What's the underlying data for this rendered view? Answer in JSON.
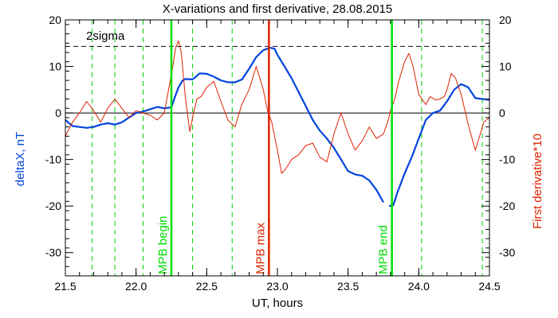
{
  "chart_data": {
    "type": "line",
    "title": "X-variations and first derivative, 28.08.2015",
    "xlabel": "UT, hours",
    "ylabel_left": "deltaX, nT",
    "ylabel_right": "First derivative*10",
    "xlim": [
      21.5,
      24.5
    ],
    "ylim": [
      -35,
      20
    ],
    "x_ticks": [
      "21.5",
      "22.0",
      "22.5",
      "23.0",
      "23.5",
      "24.0",
      "24.5"
    ],
    "y_ticks": [
      "20",
      "10",
      "0",
      "-10",
      "-20",
      "-30"
    ],
    "threshold": {
      "label": "2sigma",
      "value": 14.3
    },
    "events": [
      {
        "label": "MPB begin",
        "x": 22.25,
        "color": "#00dd00"
      },
      {
        "label": "MPB max",
        "x": 22.94,
        "color": "#dd2200"
      },
      {
        "label": "MPB end",
        "x": 23.81,
        "color": "#00dd00"
      }
    ],
    "dashed_markers_x": [
      21.69,
      21.85,
      22.05,
      22.4,
      22.68,
      24.02,
      24.45
    ],
    "colors": {
      "deltaX": "#0044dd",
      "derivative": "#dd2200",
      "event_green": "#00dd00",
      "marker_green": "#00cc00"
    },
    "series": [
      {
        "id": "deltaX",
        "x": [
          21.5,
          21.55,
          21.6,
          21.65,
          21.7,
          21.75,
          21.8,
          21.85,
          21.9,
          21.95,
          22.0,
          22.05,
          22.1,
          22.15,
          22.2,
          22.25,
          22.27,
          22.3,
          22.33,
          22.35,
          22.4,
          22.45,
          22.5,
          22.55,
          22.6,
          22.65,
          22.7,
          22.75,
          22.8,
          22.85,
          22.9,
          22.95,
          22.98,
          23.0,
          23.05,
          23.1,
          23.15,
          23.2,
          23.25,
          23.3,
          23.35,
          23.4,
          23.45,
          23.5,
          23.55,
          23.6,
          23.65,
          23.7,
          23.75
        ],
        "values": [
          -1.5,
          -2.8,
          -3.0,
          -3.2,
          -3.0,
          -2.5,
          -2.2,
          -2.5,
          -2.0,
          -1.0,
          0.0,
          0.3,
          0.8,
          1.3,
          1.0,
          1.2,
          3.0,
          5.5,
          7.0,
          7.3,
          7.2,
          8.5,
          8.4,
          7.8,
          7.0,
          6.6,
          6.6,
          7.2,
          9.5,
          12.0,
          13.5,
          14.0,
          13.8,
          12.5,
          10.0,
          7.5,
          4.5,
          1.5,
          -1.5,
          -3.8,
          -5.5,
          -7.5,
          -10.0,
          -12.5,
          -13.2,
          -13.5,
          -14.5,
          -16.5,
          -19.2
        ]
      },
      {
        "id": "deltaX_after",
        "x": [
          23.79,
          23.82,
          23.85,
          23.9,
          23.95,
          24.0,
          24.05,
          24.1,
          24.15,
          24.2,
          24.25,
          24.3,
          24.35,
          24.4,
          24.45,
          24.5
        ],
        "values": [
          -20.0,
          -19.8,
          -17.0,
          -13.0,
          -9.5,
          -5.5,
          -1.5,
          0.0,
          0.5,
          2.5,
          5.0,
          6.2,
          5.5,
          3.2,
          3.0,
          2.8
        ]
      },
      {
        "id": "derivative",
        "x": [
          21.5,
          21.55,
          21.6,
          21.65,
          21.7,
          21.75,
          21.8,
          21.85,
          21.9,
          21.95,
          22.0,
          22.05,
          22.1,
          22.15,
          22.2,
          22.23,
          22.26,
          22.28,
          22.3,
          22.32,
          22.35,
          22.38,
          22.4,
          22.43,
          22.46,
          22.5,
          22.55,
          22.6,
          22.65,
          22.7,
          22.75,
          22.8,
          22.85,
          22.9,
          22.93,
          22.96,
          23.0,
          23.03,
          23.06,
          23.1,
          23.15,
          23.2,
          23.25,
          23.3,
          23.35,
          23.4,
          23.45,
          23.5,
          23.55,
          23.6,
          23.65,
          23.7,
          23.75,
          23.78,
          23.8,
          23.83,
          23.86,
          23.9,
          23.93,
          23.96,
          24.0,
          24.05,
          24.08,
          24.12,
          24.15,
          24.18,
          24.2,
          24.23,
          24.26,
          24.3,
          24.35,
          24.4,
          24.43,
          24.46,
          24.5
        ],
        "values": [
          -5.0,
          -2.0,
          0.0,
          2.5,
          0.5,
          -2.0,
          1.0,
          3.0,
          1.0,
          -1.0,
          0.5,
          0.0,
          -0.5,
          -1.5,
          0.0,
          5.0,
          10.0,
          14.0,
          15.5,
          13.0,
          3.0,
          -4.0,
          -1.0,
          3.0,
          3.5,
          5.5,
          6.8,
          2.5,
          -1.5,
          -3.0,
          2.0,
          5.0,
          10.0,
          5.0,
          0.5,
          -2.0,
          -8.0,
          -13.0,
          -12.0,
          -10.0,
          -9.0,
          -7.0,
          -6.5,
          -9.5,
          -10.5,
          -4.5,
          0.0,
          -4.5,
          -8.0,
          -6.0,
          -3.0,
          -5.5,
          -4.5,
          -2.0,
          0.5,
          3.0,
          7.0,
          11.0,
          12.8,
          10.0,
          4.0,
          1.8,
          3.5,
          2.8,
          3.0,
          3.5,
          5.0,
          8.5,
          7.5,
          4.0,
          -2.5,
          -8.0,
          -5.0,
          -2.0,
          -1.0
        ]
      }
    ]
  }
}
